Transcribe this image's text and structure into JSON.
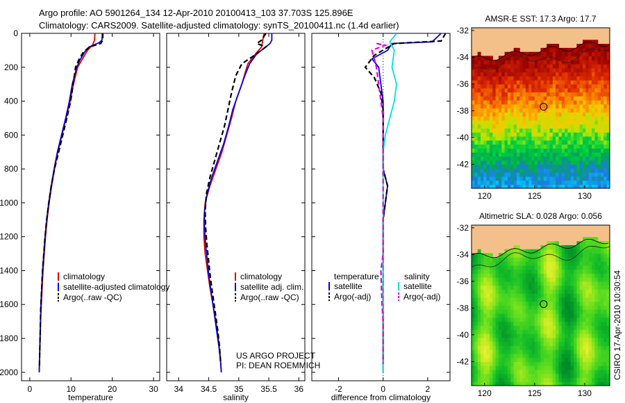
{
  "header": {
    "line1": "Argo profile: AO 5901264_134 12-Apr-2010 20100413_103 37.703S 125.896E",
    "line2": "Climatology: CARS2009. Satellite-adjusted climatology: synTS_20100411.nc (1.4d earlier)"
  },
  "credit": "CSIRO 17-Apr-2010 10:30:54",
  "project": {
    "line1": "US ARGO PROJECT",
    "line2": "PI: DEAN ROEMMICH"
  },
  "colors": {
    "climatology": "#e00000",
    "satellite": "#0000e0",
    "argo": "#000000",
    "sal_sat": "#00e0e0",
    "sal_argo": "#e000e0",
    "land": "#f4c08a"
  },
  "chart_data": [
    {
      "type": "line",
      "id": "temperature",
      "xlabel": "temperature",
      "ylabel": "",
      "xlim": [
        -2,
        31.5
      ],
      "ylim": [
        2050,
        0
      ],
      "xticks": [
        0,
        10,
        20,
        30
      ],
      "yticks": [
        0,
        200,
        400,
        600,
        800,
        1000,
        1200,
        1400,
        1600,
        1800,
        2000
      ],
      "legend": [
        "climatology",
        "satellite-adjusted climatology",
        "Argo(..raw -QC)"
      ],
      "series": [
        {
          "name": "climatology",
          "style": "solid",
          "color": "#e00000",
          "points": [
            [
              15.8,
              0
            ],
            [
              15.7,
              40
            ],
            [
              15.2,
              70
            ],
            [
              14.0,
              100
            ],
            [
              12.8,
              150
            ],
            [
              11.6,
              200
            ],
            [
              10.6,
              300
            ],
            [
              9.8,
              400
            ],
            [
              8.8,
              500
            ],
            [
              7.8,
              600
            ],
            [
              6.8,
              700
            ],
            [
              6.0,
              800
            ],
            [
              5.3,
              900
            ],
            [
              4.7,
              1000
            ],
            [
              4.2,
              1100
            ],
            [
              3.8,
              1200
            ],
            [
              3.5,
              1300
            ],
            [
              3.2,
              1400
            ],
            [
              3.0,
              1500
            ],
            [
              2.8,
              1600
            ],
            [
              2.6,
              1700
            ],
            [
              2.5,
              1800
            ],
            [
              2.4,
              1900
            ],
            [
              2.3,
              2000
            ]
          ]
        },
        {
          "name": "satellite-adjusted climatology",
          "style": "solid",
          "color": "#0000e0",
          "points": [
            [
              17.6,
              0
            ],
            [
              17.5,
              40
            ],
            [
              16.8,
              55
            ],
            [
              14.4,
              80
            ],
            [
              13.3,
              110
            ],
            [
              12.1,
              160
            ],
            [
              11.4,
              200
            ],
            [
              10.3,
              300
            ],
            [
              9.6,
              400
            ],
            [
              8.7,
              500
            ],
            [
              7.7,
              600
            ],
            [
              6.7,
              700
            ],
            [
              5.9,
              800
            ],
            [
              5.2,
              900
            ],
            [
              4.6,
              1000
            ],
            [
              4.1,
              1100
            ],
            [
              3.7,
              1200
            ],
            [
              3.4,
              1300
            ],
            [
              3.1,
              1400
            ],
            [
              2.9,
              1500
            ],
            [
              2.7,
              1600
            ],
            [
              2.6,
              1700
            ],
            [
              2.5,
              1800
            ],
            [
              2.4,
              1900
            ],
            [
              2.3,
              2000
            ]
          ]
        },
        {
          "name": "Argo(..raw -QC)",
          "style": "dashed",
          "color": "#000000",
          "points": [
            [
              17.7,
              0
            ],
            [
              17.7,
              40
            ],
            [
              17.2,
              60
            ],
            [
              14.5,
              80
            ],
            [
              13.0,
              110
            ],
            [
              12.0,
              150
            ],
            [
              11.1,
              200
            ],
            [
              10.5,
              300
            ],
            [
              9.9,
              400
            ],
            [
              9.0,
              500
            ],
            [
              8.0,
              600
            ],
            [
              7.0,
              700
            ],
            [
              6.0,
              800
            ],
            [
              5.2,
              900
            ],
            [
              4.6,
              1000
            ],
            [
              4.1,
              1100
            ],
            [
              3.7,
              1200
            ],
            [
              3.4,
              1300
            ],
            [
              3.1,
              1400
            ],
            [
              2.9,
              1500
            ],
            [
              2.7,
              1600
            ],
            [
              2.6,
              1700
            ],
            [
              2.5,
              1800
            ],
            [
              2.4,
              1900
            ],
            [
              2.35,
              1960
            ]
          ]
        }
      ]
    },
    {
      "type": "line",
      "id": "salinity",
      "xlabel": "salinity",
      "ylabel": "",
      "xlim": [
        33.8,
        36.1
      ],
      "ylim": [
        2050,
        0
      ],
      "xticks": [
        34,
        34.5,
        35,
        35.5,
        36
      ],
      "yticks": [
        0,
        200,
        400,
        600,
        800,
        1000,
        1200,
        1400,
        1600,
        1800,
        2000
      ],
      "legend": [
        "climatology",
        "satellite adj. clim.",
        "Argo(..raw -QC)"
      ],
      "series": [
        {
          "name": "climatology",
          "style": "solid",
          "color": "#e00000",
          "points": [
            [
              35.42,
              0
            ],
            [
              35.4,
              40
            ],
            [
              35.38,
              80
            ],
            [
              35.28,
              120
            ],
            [
              35.15,
              180
            ],
            [
              35.05,
              300
            ],
            [
              34.95,
              400
            ],
            [
              34.88,
              500
            ],
            [
              34.8,
              600
            ],
            [
              34.72,
              700
            ],
            [
              34.62,
              800
            ],
            [
              34.52,
              900
            ],
            [
              34.44,
              1000
            ],
            [
              34.42,
              1100
            ],
            [
              34.42,
              1200
            ],
            [
              34.44,
              1300
            ],
            [
              34.48,
              1400
            ],
            [
              34.52,
              1500
            ],
            [
              34.57,
              1600
            ],
            [
              34.62,
              1700
            ],
            [
              34.66,
              1800
            ],
            [
              34.69,
              1900
            ],
            [
              34.71,
              2000
            ]
          ]
        },
        {
          "name": "satellite adj. clim.",
          "style": "solid",
          "color": "#0000e0",
          "points": [
            [
              35.55,
              0
            ],
            [
              35.55,
              40
            ],
            [
              35.52,
              60
            ],
            [
              35.45,
              80
            ],
            [
              35.3,
              120
            ],
            [
              35.18,
              180
            ],
            [
              35.1,
              250
            ],
            [
              35.0,
              350
            ],
            [
              34.9,
              450
            ],
            [
              34.83,
              550
            ],
            [
              34.75,
              650
            ],
            [
              34.65,
              750
            ],
            [
              34.55,
              850
            ],
            [
              34.47,
              950
            ],
            [
              34.43,
              1050
            ],
            [
              34.43,
              1150
            ],
            [
              34.45,
              1250
            ],
            [
              34.48,
              1350
            ],
            [
              34.51,
              1450
            ],
            [
              34.55,
              1550
            ],
            [
              34.59,
              1650
            ],
            [
              34.63,
              1750
            ],
            [
              34.67,
              1850
            ],
            [
              34.7,
              1950
            ],
            [
              34.71,
              2000
            ]
          ]
        },
        {
          "name": "Argo(..raw -QC)",
          "style": "dashed",
          "color": "#000000",
          "points": [
            [
              35.45,
              0
            ],
            [
              35.38,
              40
            ],
            [
              35.3,
              60
            ],
            [
              35.45,
              80
            ],
            [
              35.3,
              120
            ],
            [
              35.05,
              180
            ],
            [
              34.95,
              250
            ],
            [
              34.88,
              350
            ],
            [
              34.82,
              450
            ],
            [
              34.76,
              550
            ],
            [
              34.68,
              650
            ],
            [
              34.6,
              750
            ],
            [
              34.52,
              850
            ],
            [
              34.46,
              950
            ],
            [
              34.44,
              1050
            ],
            [
              34.45,
              1150
            ],
            [
              34.47,
              1250
            ],
            [
              34.5,
              1350
            ],
            [
              34.53,
              1450
            ],
            [
              34.57,
              1550
            ],
            [
              34.61,
              1650
            ],
            [
              34.65,
              1750
            ],
            [
              34.68,
              1850
            ],
            [
              34.7,
              1950
            ]
          ]
        }
      ]
    },
    {
      "type": "line",
      "id": "difference",
      "xlabel": "difference from climatology",
      "ylabel": "",
      "xlim": [
        -3.2,
        3.0
      ],
      "ylim": [
        2050,
        0
      ],
      "xticks": [
        -2,
        0,
        2
      ],
      "yticks": [
        0,
        200,
        400,
        600,
        800,
        1000,
        1200,
        1400,
        1600,
        1800,
        2000
      ],
      "legend_headers": [
        "temperature",
        "salinity"
      ],
      "legend": [
        "satellite",
        "Argo(-adj)",
        "satellite",
        "Argo(-adj)"
      ],
      "series": [
        {
          "name": "satellite",
          "group": "temperature",
          "style": "solid",
          "color": "#0000e0",
          "points": [
            [
              2.6,
              0
            ],
            [
              2.2,
              50
            ],
            [
              0.4,
              60
            ],
            [
              0.2,
              100
            ],
            [
              -0.5,
              150
            ],
            [
              -0.2,
              200
            ],
            [
              -0.1,
              300
            ],
            [
              0,
              400
            ],
            [
              0,
              800
            ],
            [
              0.2,
              900
            ],
            [
              0.1,
              1000
            ],
            [
              0,
              1100
            ],
            [
              0,
              1500
            ],
            [
              0,
              2000
            ]
          ]
        },
        {
          "name": "Argo(-adj)",
          "group": "temperature",
          "style": "dashed",
          "color": "#000000",
          "points": [
            [
              2.8,
              0
            ],
            [
              2.6,
              45
            ],
            [
              0.5,
              60
            ],
            [
              -0.4,
              130
            ],
            [
              -0.8,
              200
            ],
            [
              -0.4,
              260
            ],
            [
              -0.1,
              350
            ],
            [
              0,
              450
            ],
            [
              0,
              800
            ],
            [
              0.2,
              900
            ],
            [
              0.1,
              1000
            ],
            [
              0,
              1100
            ],
            [
              0,
              1500
            ],
            [
              0,
              1950
            ]
          ]
        },
        {
          "name": "satellite",
          "group": "salinity",
          "style": "solid",
          "color": "#00e0e0",
          "points": [
            [
              0.6,
              0
            ],
            [
              0.3,
              50
            ],
            [
              0.5,
              100
            ],
            [
              0.4,
              200
            ],
            [
              0.6,
              300
            ],
            [
              0.5,
              400
            ],
            [
              0.3,
              500
            ],
            [
              0.1,
              600
            ],
            [
              0,
              700
            ],
            [
              0,
              2000
            ]
          ]
        },
        {
          "name": "Argo(-adj)",
          "group": "salinity",
          "style": "dashed",
          "color": "#e000e0",
          "points": [
            [
              -0.3,
              60
            ],
            [
              0.1,
              70
            ],
            [
              -0.5,
              100
            ],
            [
              -0.3,
              200
            ],
            [
              -0.2,
              300
            ],
            [
              -0.1,
              400
            ],
            [
              0,
              500
            ],
            [
              0,
              1300
            ],
            [
              -0.1,
              1400
            ],
            [
              -0.05,
              1600
            ],
            [
              0,
              1700
            ],
            [
              0,
              1950
            ]
          ]
        }
      ]
    },
    {
      "type": "heatmap",
      "id": "sst_map",
      "title": "AMSR-E SST: 17.3 Argo: 17.7",
      "xlim": [
        118.7,
        132.5
      ],
      "ylim": [
        -43.8,
        -31.8
      ],
      "xticks": [
        120,
        125,
        130
      ],
      "yticks": [
        -32,
        -34,
        -36,
        -38,
        -40,
        -42
      ],
      "marker": {
        "lon": 125.9,
        "lat": -37.7
      }
    },
    {
      "type": "heatmap",
      "id": "sla_map",
      "title": "Altimetric SLA: 0.028 Argo: 0.056",
      "xlim": [
        118.7,
        132.5
      ],
      "ylim": [
        -43.8,
        -31.8
      ],
      "xticks": [
        120,
        125,
        130
      ],
      "yticks": [
        -32,
        -34,
        -36,
        -38,
        -40,
        -42
      ],
      "marker": {
        "lon": 125.9,
        "lat": -37.7
      }
    }
  ]
}
